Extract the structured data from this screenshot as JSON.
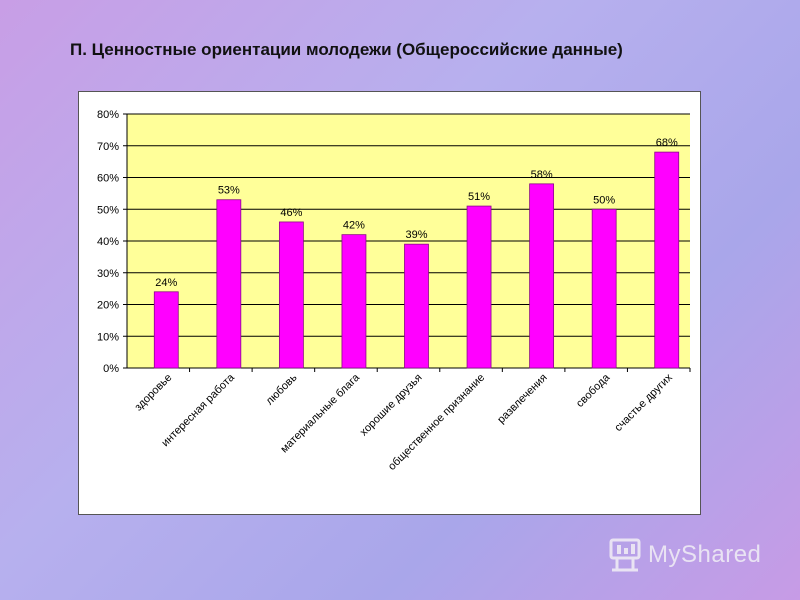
{
  "page": {
    "title": "П. Ценностные ориентации молодежи (Общероссийские данные)"
  },
  "chart_data": {
    "type": "bar",
    "title": "",
    "xlabel": "",
    "ylabel": "",
    "categories": [
      "здоровье",
      "интересная работа",
      "любовь",
      "материальные блага",
      "хорошие друзья",
      "общественное признание",
      "развлечения",
      "свобода",
      "счастье других"
    ],
    "values": [
      24,
      53,
      46,
      42,
      39,
      51,
      58,
      50,
      68
    ],
    "value_labels": [
      "24%",
      "53%",
      "46%",
      "42%",
      "39%",
      "51%",
      "58%",
      "50%",
      "68%"
    ],
    "yticks": [
      "0%",
      "10%",
      "20%",
      "30%",
      "40%",
      "50%",
      "60%",
      "70%",
      "80%"
    ],
    "ylim": [
      0,
      80
    ],
    "grid": true,
    "bar_color": "#ff00ff",
    "plot_background": "#ffff99"
  },
  "watermark": {
    "text": "MyShared"
  }
}
